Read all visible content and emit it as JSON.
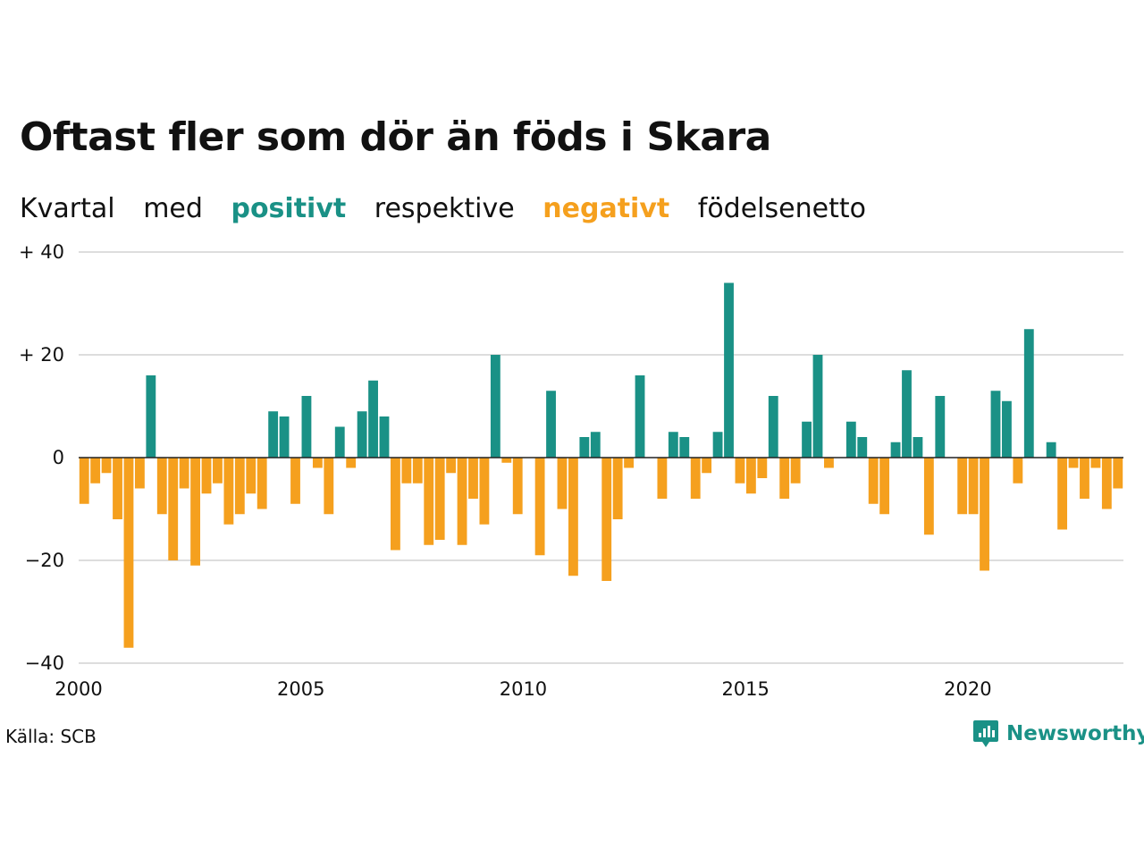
{
  "title": "Oftast fler som dör än föds i Skara",
  "subtitle": {
    "word1": "Kvartal",
    "word2": "med",
    "positive_word": "positivt",
    "word3": "respektive",
    "negative_word": "negativt",
    "word4": "födelsenetto"
  },
  "source": "Källa: SCB",
  "brand": {
    "name": "Newsworthy",
    "icon": "newsworthy-logo-icon"
  },
  "colors": {
    "positive": "#1a9186",
    "negative": "#f5a01e",
    "grid": "#dddddd",
    "text": "#111111"
  },
  "chart_data": {
    "type": "bar",
    "title": "Oftast fler som dör än föds i Skara",
    "xlabel": "",
    "ylabel": "",
    "x_start": 2000,
    "period": "quarter",
    "xlim": [
      2000,
      2023.5
    ],
    "ylim": [
      -40,
      40
    ],
    "y_ticks": [
      {
        "value": 40,
        "label": "+ 40"
      },
      {
        "value": 20,
        "label": "+ 20"
      },
      {
        "value": 0,
        "label": "0"
      },
      {
        "value": -20,
        "label": "−20"
      },
      {
        "value": -40,
        "label": "−40"
      }
    ],
    "x_ticks": [
      {
        "value": 2000,
        "label": "2000"
      },
      {
        "value": 2005,
        "label": "2005"
      },
      {
        "value": 2010,
        "label": "2010"
      },
      {
        "value": 2015,
        "label": "2015"
      },
      {
        "value": 2020,
        "label": "2020"
      }
    ],
    "grid": true,
    "values": [
      -9,
      -5,
      -3,
      -12,
      -37,
      -6,
      16,
      -11,
      -20,
      -6,
      -21,
      -7,
      -5,
      -13,
      -11,
      -7,
      -10,
      9,
      8,
      -9,
      12,
      -2,
      -11,
      6,
      -2,
      9,
      15,
      8,
      -18,
      -5,
      -5,
      -17,
      -16,
      -3,
      -17,
      -8,
      -13,
      20,
      -1,
      -11,
      0,
      -19,
      13,
      -10,
      -23,
      4,
      5,
      -24,
      -12,
      -2,
      16,
      0,
      -8,
      5,
      4,
      -8,
      -3,
      5,
      34,
      -5,
      -7,
      -4,
      12,
      -8,
      -5,
      7,
      20,
      -2,
      0,
      7,
      4,
      -9,
      -11,
      3,
      17,
      4,
      -15,
      12,
      0,
      -11,
      -11,
      -22,
      13,
      11,
      -5,
      25,
      0,
      3,
      -14,
      -2,
      -8,
      -2,
      -10,
      -6
    ]
  }
}
